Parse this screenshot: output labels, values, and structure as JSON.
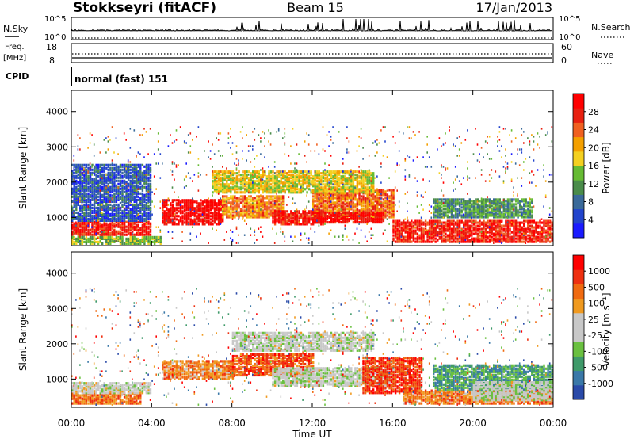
{
  "header": {
    "station": "Stokkseyri (fitACF)",
    "beam": "Beam 15",
    "date": "17/Jan/2013"
  },
  "top_panels": {
    "nsky_label": "N.Sky",
    "nsearch_label": "N.Search",
    "counts_ticks_left": [
      "10^5",
      "10^0"
    ],
    "counts_ticks_right": [
      "10^5",
      "10^0"
    ],
    "freq_label_1": "Freq.",
    "freq_label_2": "[MHz]",
    "freq_ticks": [
      "18",
      "8"
    ],
    "nave_label": "Nave",
    "nave_ticks": [
      "60",
      "0"
    ],
    "cpid_label": "CPID",
    "cpid_text": "normal (fast) 151"
  },
  "chart_data": [
    {
      "type": "heatmap",
      "title": "",
      "ylabel": "Slant Range [km]",
      "ylim": [
        200,
        4600
      ],
      "yticks": [
        "4000",
        "3000",
        "2000",
        "1000"
      ],
      "colorbar_label": "Power [dB]",
      "colorbar_ticks": [
        "28",
        "24",
        "20",
        "16",
        "12",
        "8",
        "4"
      ],
      "colors": [
        "#1a1aff",
        "#2244cc",
        "#3a6a9a",
        "#4a8c4a",
        "#66bb33",
        "#f4d020",
        "#f4a000",
        "#f06020",
        "#e82010",
        "#ff0000"
      ],
      "regions": [
        {
          "t0": 0.0,
          "t1": 4.0,
          "r0": 500,
          "r1": 900,
          "level": 0.88
        },
        {
          "t0": 0.0,
          "t1": 4.5,
          "r0": 250,
          "r1": 450,
          "level": 0.45
        },
        {
          "t0": 4.5,
          "t1": 7.5,
          "r0": 800,
          "r1": 1500,
          "level": 0.95
        },
        {
          "t0": 7.5,
          "t1": 10.5,
          "r0": 1000,
          "r1": 1600,
          "level": 0.7
        },
        {
          "t0": 10.0,
          "t1": 12.5,
          "r0": 800,
          "r1": 1200,
          "level": 0.9
        },
        {
          "t0": 12.0,
          "t1": 16.0,
          "r0": 1000,
          "r1": 1800,
          "level": 0.75
        },
        {
          "t0": 12.0,
          "t1": 15.5,
          "r0": 850,
          "r1": 1150,
          "level": 0.92
        },
        {
          "t0": 16.0,
          "t1": 24.0,
          "r0": 300,
          "r1": 900,
          "level": 0.88
        },
        {
          "t0": 18.0,
          "t1": 23.0,
          "r0": 1000,
          "r1": 1500,
          "level": 0.35
        },
        {
          "t0": 7.0,
          "t1": 15.0,
          "r0": 1700,
          "r1": 2300,
          "level": 0.55
        },
        {
          "t0": 0.0,
          "t1": 4.0,
          "r0": 900,
          "r1": 2500,
          "level": 0.2
        }
      ],
      "scatter_density": 0.05
    },
    {
      "type": "heatmap",
      "title": "",
      "ylabel": "Slant Range [km]",
      "ylim": [
        200,
        4600
      ],
      "yticks": [
        "4000",
        "3000",
        "2000",
        "1000"
      ],
      "colorbar_label": "Velocity [m s⁻¹]",
      "colorbar_ticks": [
        "1000",
        "500",
        "100",
        "25",
        "-25",
        "-100",
        "-500",
        "-1000"
      ],
      "colors": [
        "#2a4aa8",
        "#3a78a8",
        "#3f9a6a",
        "#6ac040",
        "#c8c8c8",
        "#c8c8c8",
        "#f09a20",
        "#f06a10",
        "#ee3010",
        "#ff0000"
      ],
      "regions": [
        {
          "t0": 0.0,
          "t1": 3.5,
          "r0": 300,
          "r1": 600,
          "level": 0.75
        },
        {
          "t0": 0.0,
          "t1": 4.0,
          "r0": 600,
          "r1": 900,
          "level": 0.5
        },
        {
          "t0": 4.5,
          "t1": 8.0,
          "r0": 1000,
          "r1": 1500,
          "level": 0.7
        },
        {
          "t0": 8.0,
          "t1": 12.0,
          "r0": 1100,
          "r1": 1700,
          "level": 0.8
        },
        {
          "t0": 10.0,
          "t1": 16.0,
          "r0": 800,
          "r1": 1300,
          "level": 0.47
        },
        {
          "t0": 8.0,
          "t1": 15.0,
          "r0": 1800,
          "r1": 2300,
          "level": 0.47
        },
        {
          "t0": 14.5,
          "t1": 17.5,
          "r0": 600,
          "r1": 1600,
          "level": 0.85
        },
        {
          "t0": 16.5,
          "t1": 24.0,
          "r0": 300,
          "r1": 700,
          "level": 0.72
        },
        {
          "t0": 18.0,
          "t1": 24.0,
          "r0": 700,
          "r1": 1400,
          "level": 0.25
        },
        {
          "t0": 20.0,
          "t1": 24.0,
          "r0": 400,
          "r1": 900,
          "level": 0.47
        }
      ],
      "scatter_density": 0.04
    }
  ],
  "time_axis": {
    "ticks": [
      "00:00",
      "04:00",
      "08:00",
      "12:00",
      "16:00",
      "20:00",
      "00:00"
    ],
    "xlabel": "Time UT",
    "xlim": [
      0,
      24
    ]
  }
}
